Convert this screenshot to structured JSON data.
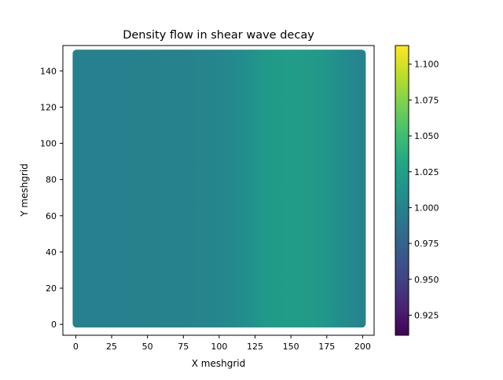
{
  "chart_data": {
    "type": "heatmap",
    "title": "Density flow in shear wave decay",
    "xlabel": "X meshgrid",
    "ylabel": "Y meshgrid",
    "xlim": [
      -9,
      208
    ],
    "ylim": [
      -6,
      154
    ],
    "x_ticks": [
      0,
      25,
      50,
      75,
      100,
      125,
      150,
      175,
      200
    ],
    "y_ticks": [
      0,
      20,
      40,
      60,
      80,
      100,
      120,
      140
    ],
    "grid_extent": {
      "x": [
        0,
        200
      ],
      "y": [
        0,
        150
      ]
    },
    "density_profile": {
      "x": [
        0,
        25,
        50,
        75,
        100,
        110,
        120,
        125,
        130,
        140,
        150,
        160,
        170,
        175,
        180,
        190,
        200
      ],
      "value": [
        0.998,
        0.998,
        0.999,
        1.0,
        1.003,
        1.006,
        1.011,
        1.015,
        1.018,
        1.021,
        1.022,
        1.021,
        1.018,
        1.015,
        1.011,
        1.005,
        0.999
      ]
    },
    "colorbar": {
      "colormap": "viridis",
      "vmin": 0.911,
      "vmax": 1.113,
      "ticks": [
        0.925,
        0.95,
        0.975,
        1.0,
        1.025,
        1.05,
        1.075,
        1.1
      ],
      "tick_labels": [
        "0.925",
        "0.950",
        "0.975",
        "1.000",
        "1.025",
        "1.050",
        "1.075",
        "1.100"
      ]
    }
  }
}
